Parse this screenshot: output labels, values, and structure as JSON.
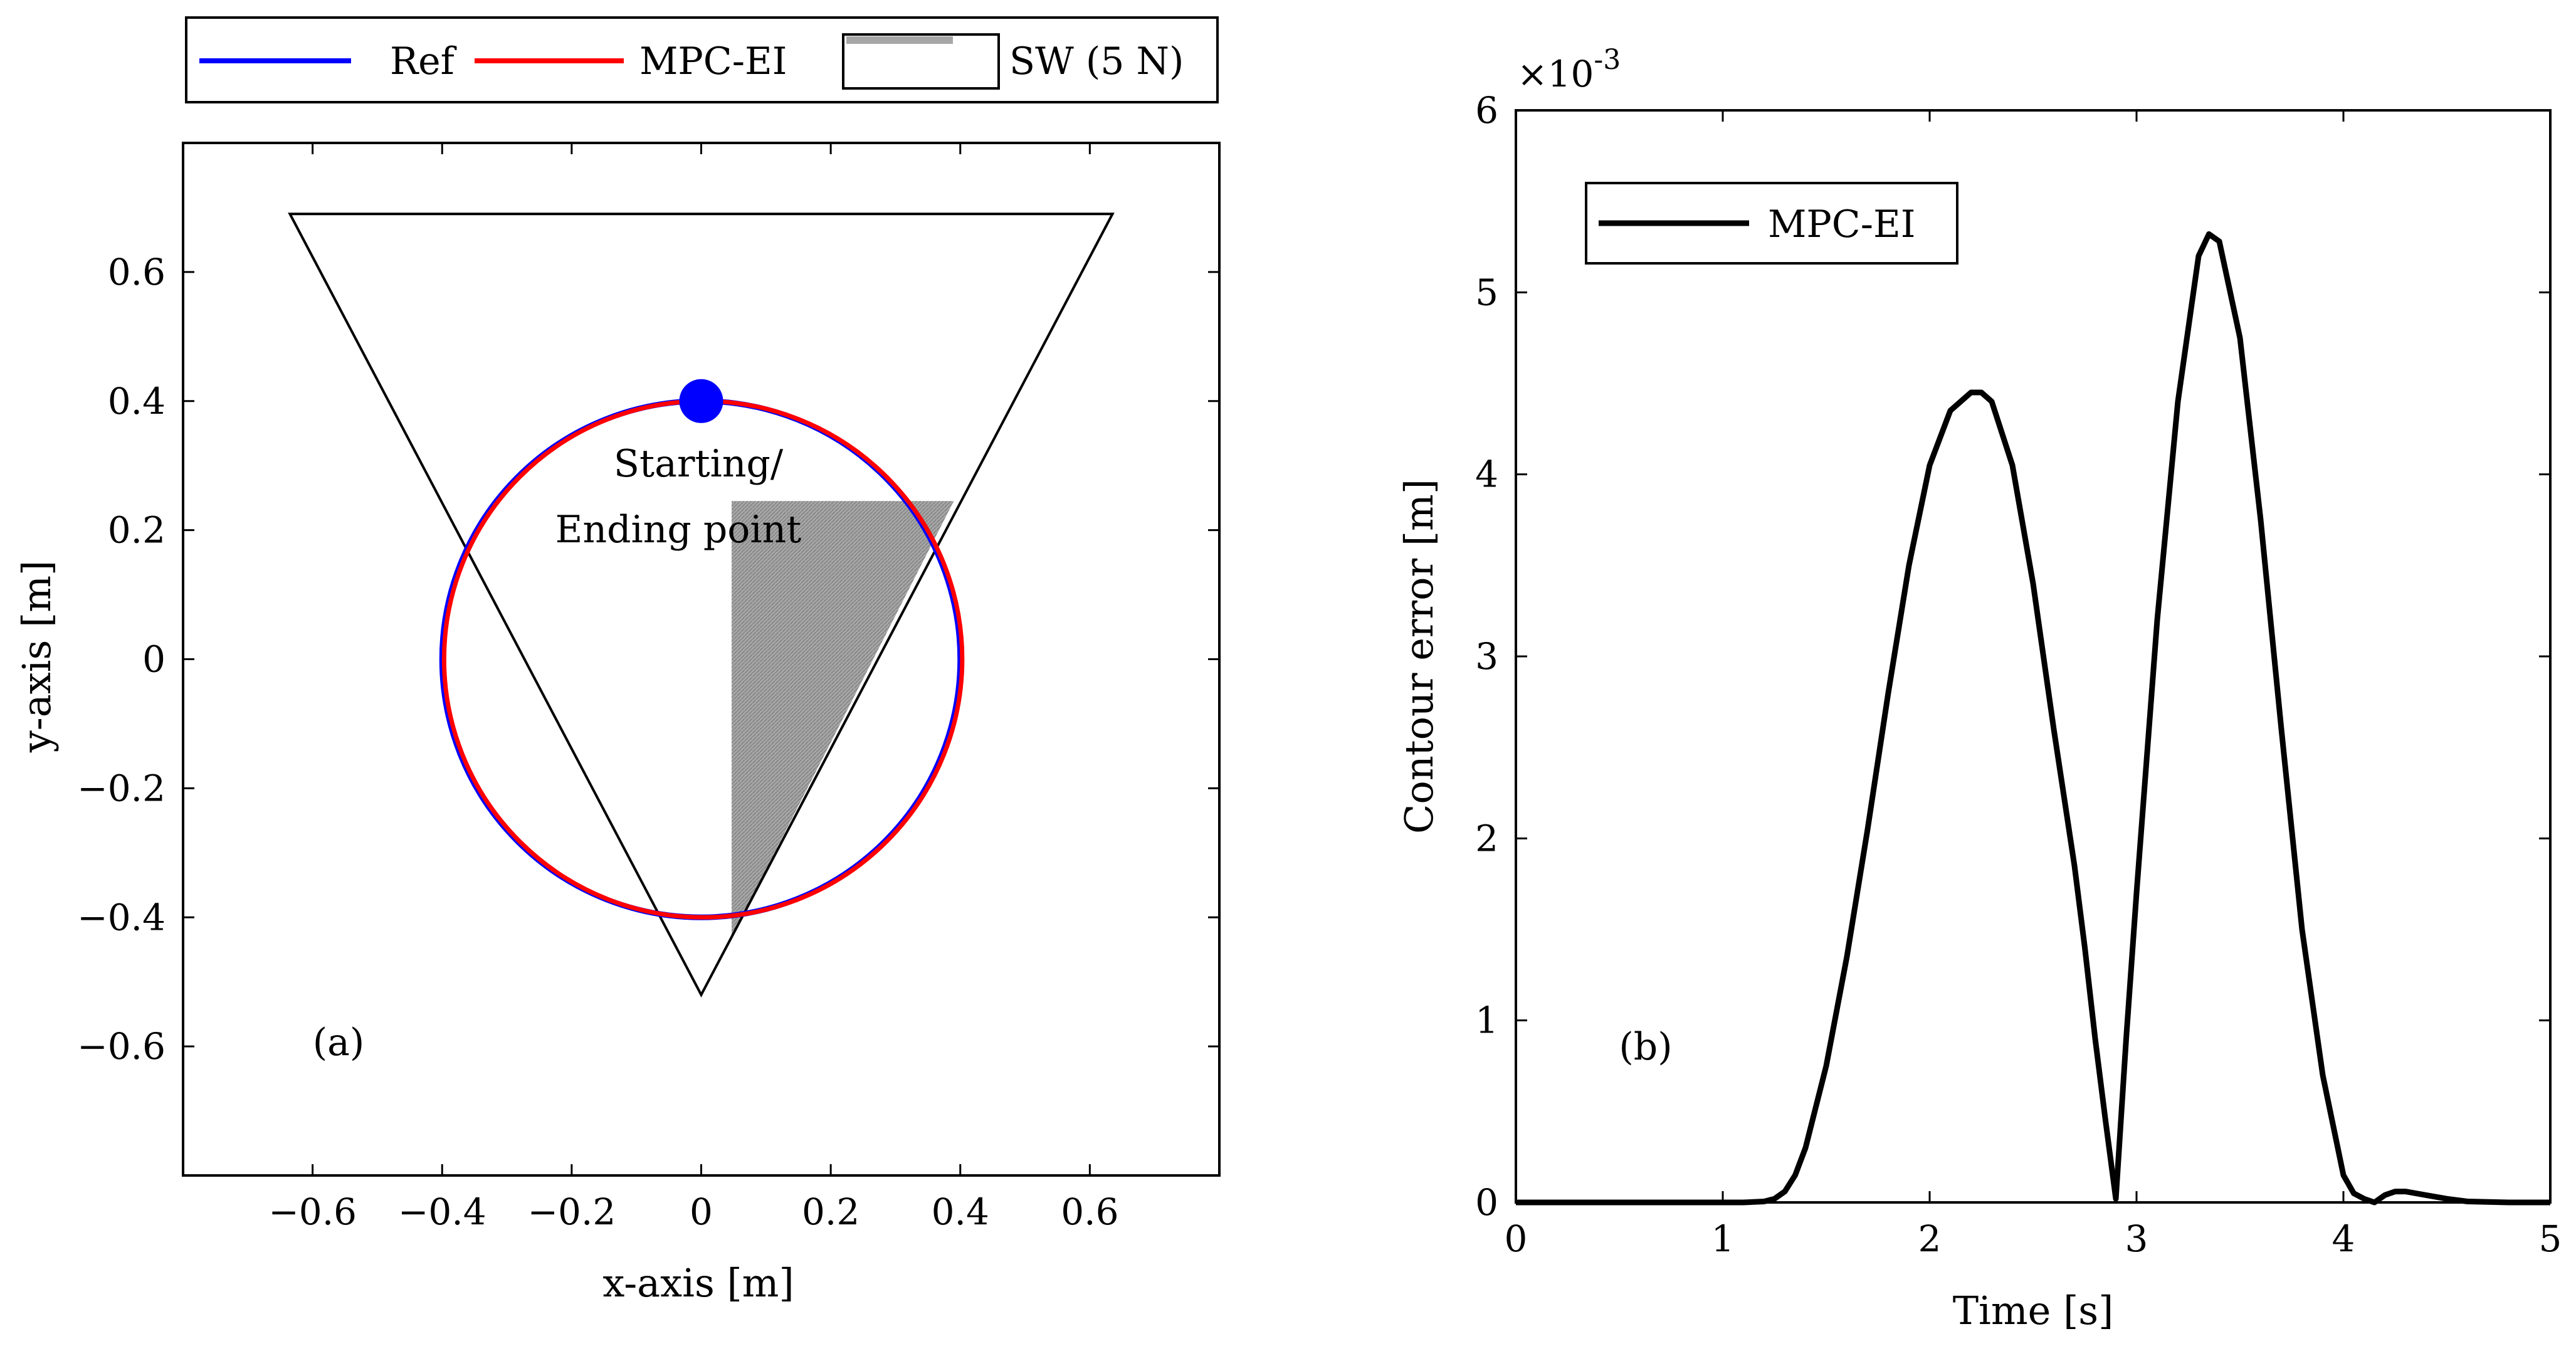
{
  "chart_data": [
    {
      "panel": "(a)",
      "type": "line",
      "xlabel": "x-axis [m]",
      "ylabel": "y-axis [m]",
      "xlim": [
        -0.8,
        0.8
      ],
      "ylim": [
        -0.8,
        0.8
      ],
      "xticks": [
        -0.6,
        -0.4,
        -0.2,
        0,
        0.2,
        0.4,
        0.6
      ],
      "yticks": [
        -0.6,
        -0.4,
        -0.2,
        0,
        0.2,
        0.4,
        0.6
      ],
      "xtick_labels": [
        "−0.6",
        "−0.4",
        "−0.2",
        "0",
        "0.2",
        "0.4",
        "0.6"
      ],
      "ytick_labels": [
        "−0.6",
        "−0.4",
        "−0.2",
        "0",
        "0.2",
        "0.4",
        "0.6"
      ],
      "series": [
        {
          "name": "Ref",
          "color": "#0000ff",
          "shape": "circle",
          "center": [
            0,
            0
          ],
          "radius": 0.4
        },
        {
          "name": "MPC-EI",
          "color": "#ff0000",
          "shape": "circle",
          "center": [
            0.003,
            0.0
          ],
          "radius": 0.4
        }
      ],
      "triangle": {
        "vertices": [
          [
            -0.635,
            0.69
          ],
          [
            0.635,
            0.69
          ],
          [
            0.0,
            -0.52
          ]
        ],
        "color": "#000000"
      },
      "shaded_region": {
        "name": "SW (5 N)",
        "vertices": [
          [
            0.047,
            0.245
          ],
          [
            0.39,
            0.245
          ],
          [
            0.047,
            -0.43
          ]
        ],
        "color": "#a6a6a6"
      },
      "start_point": {
        "x": 0,
        "y": 0.4,
        "color": "#0000ff"
      },
      "annotations": {
        "start_line1": "Starting/",
        "start_line2": "Ending point",
        "panel_label": "(a)"
      },
      "legend": {
        "placement": "top",
        "entries": [
          "Ref",
          "MPC-EI",
          "SW (5 N)"
        ]
      }
    },
    {
      "panel": "(b)",
      "type": "line",
      "xlabel": "Time [s]",
      "ylabel": "Contour error [m]",
      "exponent_prefix": "×10",
      "exponent_power": "-3",
      "xlim": [
        0,
        5
      ],
      "ylim": [
        0,
        6
      ],
      "xticks": [
        0,
        1,
        2,
        3,
        4,
        5
      ],
      "yticks": [
        0,
        1,
        2,
        3,
        4,
        5,
        6
      ],
      "xtick_labels": [
        "0",
        "1",
        "2",
        "3",
        "4",
        "5"
      ],
      "ytick_labels": [
        "0",
        "1",
        "2",
        "3",
        "4",
        "5",
        "6"
      ],
      "series": [
        {
          "name": "MPC-EI",
          "color": "#000000",
          "unit_scale": "x1e-3 m",
          "x": [
            0,
            1.0,
            1.1,
            1.2,
            1.25,
            1.3,
            1.35,
            1.4,
            1.5,
            1.6,
            1.7,
            1.8,
            1.9,
            2.0,
            2.1,
            2.2,
            2.25,
            2.3,
            2.4,
            2.5,
            2.6,
            2.7,
            2.75,
            2.8,
            2.85,
            2.9,
            2.95,
            3.0,
            3.1,
            3.2,
            3.3,
            3.35,
            3.4,
            3.5,
            3.6,
            3.7,
            3.8,
            3.9,
            4.0,
            4.05,
            4.1,
            4.15,
            4.2,
            4.25,
            4.3,
            4.4,
            4.5,
            4.6,
            4.8,
            5.0
          ],
          "y": [
            0,
            0,
            0,
            0.005,
            0.02,
            0.06,
            0.15,
            0.3,
            0.75,
            1.35,
            2.05,
            2.8,
            3.5,
            4.05,
            4.35,
            4.45,
            4.45,
            4.4,
            4.05,
            3.4,
            2.6,
            1.85,
            1.4,
            0.9,
            0.45,
            0.02,
            0.9,
            1.7,
            3.2,
            4.4,
            5.2,
            5.32,
            5.28,
            4.75,
            3.75,
            2.6,
            1.5,
            0.7,
            0.15,
            0.05,
            0.02,
            0.0,
            0.04,
            0.06,
            0.06,
            0.04,
            0.02,
            0.005,
            0.0,
            0.0
          ]
        }
      ],
      "annotations": {
        "panel_label": "(b)"
      },
      "legend": {
        "placement": "top-left",
        "entries": [
          "MPC-EI"
        ]
      }
    }
  ]
}
